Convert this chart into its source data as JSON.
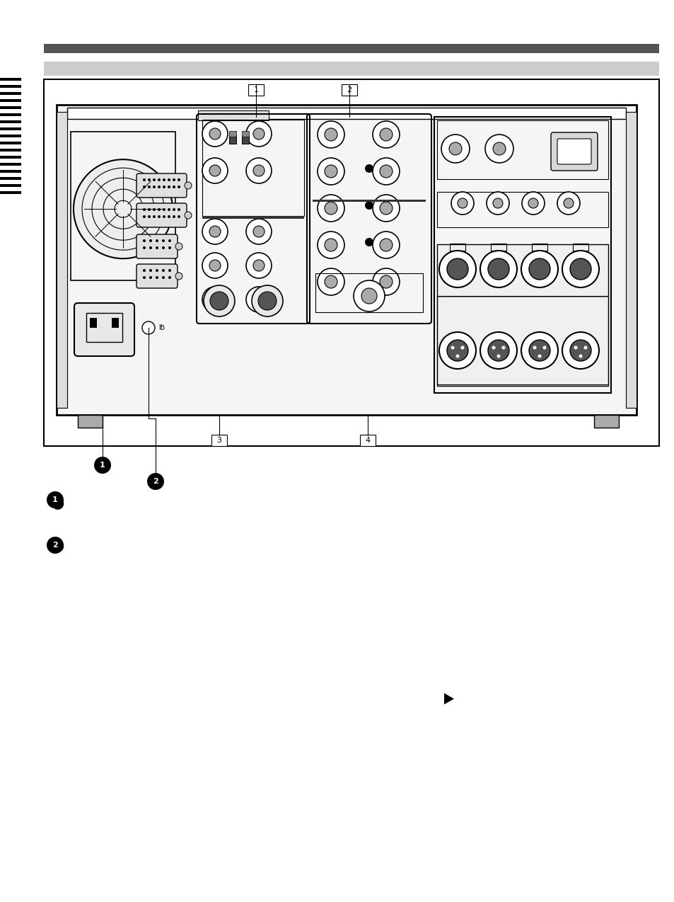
{
  "bg_color": "#ffffff",
  "dark_bar_color": "#555555",
  "light_bar_color": "#cccccc",
  "page_width": 1.0,
  "page_height": 1.0
}
